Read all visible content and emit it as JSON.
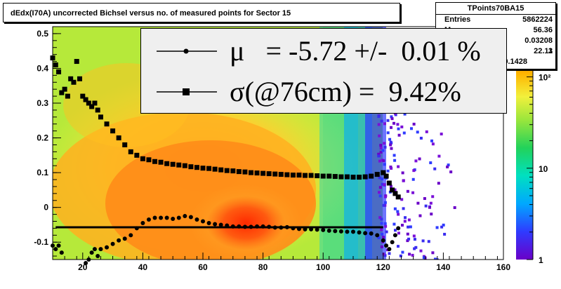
{
  "title": "dEdx(I70A) uncorrected Bichsel versus no. of measured points for Sector 15",
  "stats": {
    "name": "TPoints70BA15",
    "rows": [
      {
        "key": "Entries",
        "value": "5862224"
      },
      {
        "key": "M",
        "value": "56.36"
      },
      {
        "key": "",
        "value": "0.03208"
      },
      {
        "key": "",
        "value": "22.11"
      },
      {
        "key": "",
        "value": "0.1428"
      }
    ],
    "fragment": "3"
  },
  "legend": {
    "mu_text": "μ   = -5.72 +/-  0.01 %",
    "sigma_text": "σ(@76cm) =  9.42%"
  },
  "colors": {
    "frame": "#000000",
    "legend_bg": "#efefef",
    "fit_line": "#000000"
  },
  "chart_data": {
    "type": "heatmap",
    "x_range": [
      10,
      160
    ],
    "y_range": [
      -0.15,
      0.52
    ],
    "x_ticks": [
      20,
      40,
      60,
      80,
      100,
      120,
      140,
      160
    ],
    "y_ticks": [
      -0.1,
      0,
      0.1,
      0.2,
      0.3,
      0.4,
      0.5
    ],
    "y_tick_labels": [
      "-0.1",
      "0",
      "0.1",
      "0.2",
      "0.3",
      "0.4",
      "0.5"
    ],
    "z_scale": "log",
    "z_ticks": [
      1,
      10,
      100
    ],
    "z_tick_labels": [
      "1",
      "10",
      "10²"
    ],
    "fit_mean": -0.0572,
    "series": [
      {
        "marker": "square",
        "x": [
          10,
          11,
          12,
          13,
          14,
          15,
          16,
          17,
          18,
          19,
          20,
          21,
          22,
          23,
          24,
          25,
          26,
          28,
          30,
          32,
          34,
          36,
          38,
          40,
          42,
          44,
          46,
          48,
          50,
          52,
          54,
          56,
          58,
          60,
          62,
          64,
          66,
          68,
          70,
          72,
          74,
          76,
          78,
          80,
          82,
          84,
          86,
          88,
          90,
          92,
          94,
          96,
          98,
          100,
          102,
          104,
          106,
          108,
          110,
          112,
          114,
          116,
          118,
          120,
          121,
          122,
          123,
          124,
          125
        ],
        "y": [
          0.43,
          0.41,
          0.39,
          0.33,
          0.34,
          0.32,
          0.37,
          0.36,
          0.42,
          0.37,
          0.32,
          0.31,
          0.3,
          0.29,
          0.3,
          0.28,
          0.26,
          0.24,
          0.22,
          0.2,
          0.18,
          0.16,
          0.15,
          0.14,
          0.137,
          0.132,
          0.13,
          0.126,
          0.124,
          0.122,
          0.12,
          0.117,
          0.115,
          0.113,
          0.112,
          0.11,
          0.108,
          0.106,
          0.105,
          0.103,
          0.102,
          0.1,
          0.099,
          0.098,
          0.097,
          0.096,
          0.095,
          0.094,
          0.093,
          0.093,
          0.092,
          0.092,
          0.091,
          0.09,
          0.09,
          0.089,
          0.088,
          0.088,
          0.087,
          0.087,
          0.088,
          0.09,
          0.095,
          0.1,
          0.09,
          0.07,
          0.05,
          0.04,
          0.03
        ]
      },
      {
        "marker": "circle",
        "x": [
          10,
          11,
          12,
          13,
          21,
          22,
          23,
          24,
          25,
          26,
          28,
          30,
          32,
          34,
          36,
          38,
          40,
          42,
          44,
          46,
          48,
          50,
          52,
          54,
          56,
          58,
          60,
          62,
          64,
          66,
          68,
          70,
          72,
          74,
          76,
          78,
          80,
          82,
          84,
          86,
          88,
          90,
          92,
          94,
          96,
          98,
          100,
          102,
          104,
          106,
          108,
          110,
          112,
          114,
          116,
          118,
          120,
          121,
          122,
          123,
          124,
          125
        ],
        "y": [
          -0.11,
          -0.12,
          -0.11,
          -0.13,
          -0.16,
          -0.15,
          -0.13,
          -0.12,
          -0.14,
          -0.12,
          -0.115,
          -0.105,
          -0.095,
          -0.09,
          -0.08,
          -0.06,
          -0.045,
          -0.035,
          -0.03,
          -0.03,
          -0.03,
          -0.033,
          -0.03,
          -0.025,
          -0.028,
          -0.035,
          -0.04,
          -0.045,
          -0.048,
          -0.05,
          -0.052,
          -0.055,
          -0.055,
          -0.056,
          -0.056,
          -0.055,
          -0.055,
          -0.056,
          -0.058,
          -0.058,
          -0.057,
          -0.06,
          -0.062,
          -0.063,
          -0.063,
          -0.064,
          -0.065,
          -0.067,
          -0.068,
          -0.069,
          -0.07,
          -0.07,
          -0.072,
          -0.074,
          -0.075,
          -0.08,
          -0.095,
          -0.11,
          -0.12,
          -0.1,
          -0.08,
          -0.06
        ]
      }
    ]
  }
}
